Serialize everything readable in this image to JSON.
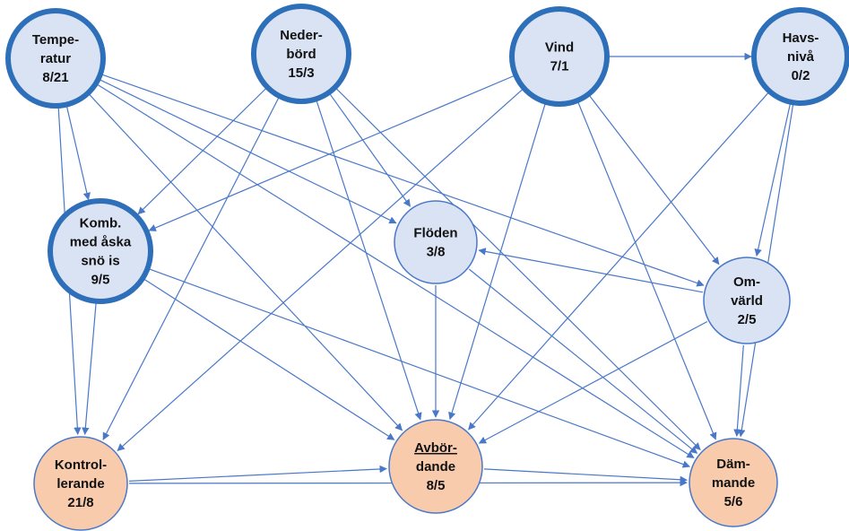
{
  "colors": {
    "edge": "#4a78c8",
    "node_fill_blue": "#dae3f3",
    "node_stroke_blue": "#2e6fba",
    "node_fill_orange": "#f8cbad",
    "node_stroke_blue_thin": "#4a78c8",
    "node_stroke_orange": "#4a78c8",
    "text": "#111111"
  },
  "nodes": [
    {
      "id": "temperatur",
      "lines": [
        "Tempe-",
        "ratur",
        "8/21"
      ],
      "style": "thick",
      "fill": "blue"
    },
    {
      "id": "nederbord",
      "lines": [
        "Neder-",
        "börd",
        "15/3"
      ],
      "style": "thick",
      "fill": "blue"
    },
    {
      "id": "vind",
      "lines": [
        "Vind",
        "7/1"
      ],
      "style": "thick",
      "fill": "blue"
    },
    {
      "id": "havsniva",
      "lines": [
        "Havs-",
        "nivå",
        "0/2"
      ],
      "style": "thick",
      "fill": "blue"
    },
    {
      "id": "komb",
      "lines": [
        "Komb.",
        "med åska",
        "snö is",
        "9/5"
      ],
      "style": "thick",
      "fill": "blue"
    },
    {
      "id": "floden",
      "lines": [
        "Flöden",
        "3/8"
      ],
      "style": "thin",
      "fill": "blue"
    },
    {
      "id": "omvarld",
      "lines": [
        "Om-",
        "värld",
        "2/5"
      ],
      "style": "thin",
      "fill": "blue"
    },
    {
      "id": "kontrollerande",
      "lines": [
        "Kontrol-",
        "lerande",
        "21/8"
      ],
      "style": "thin",
      "fill": "orange"
    },
    {
      "id": "avbordande",
      "lines": [
        "Avbör-",
        "dande",
        "8/5"
      ],
      "style": "thin",
      "fill": "orange",
      "underline_line": 0
    },
    {
      "id": "dammande",
      "lines": [
        "Däm-",
        "mande",
        "5/6"
      ],
      "style": "thin",
      "fill": "orange"
    }
  ],
  "edges": [
    [
      "temperatur",
      "komb"
    ],
    [
      "temperatur",
      "kontrollerande"
    ],
    [
      "temperatur",
      "avbordande"
    ],
    [
      "temperatur",
      "floden"
    ],
    [
      "temperatur",
      "omvarld"
    ],
    [
      "temperatur",
      "dammande"
    ],
    [
      "nederbord",
      "komb"
    ],
    [
      "nederbord",
      "kontrollerande"
    ],
    [
      "nederbord",
      "floden"
    ],
    [
      "nederbord",
      "avbordande"
    ],
    [
      "nederbord",
      "dammande"
    ],
    [
      "vind",
      "havsniva"
    ],
    [
      "vind",
      "komb"
    ],
    [
      "vind",
      "kontrollerande"
    ],
    [
      "vind",
      "avbordande"
    ],
    [
      "vind",
      "omvarld"
    ],
    [
      "vind",
      "dammande"
    ],
    [
      "havsniva",
      "omvarld"
    ],
    [
      "havsniva",
      "avbordande"
    ],
    [
      "havsniva",
      "dammande"
    ],
    [
      "komb",
      "kontrollerande"
    ],
    [
      "komb",
      "avbordande"
    ],
    [
      "komb",
      "dammande"
    ],
    [
      "floden",
      "avbordande"
    ],
    [
      "floden",
      "dammande"
    ],
    [
      "omvarld",
      "floden"
    ],
    [
      "omvarld",
      "avbordande"
    ],
    [
      "omvarld",
      "dammande"
    ],
    [
      "kontrollerande",
      "avbordande"
    ],
    [
      "kontrollerande",
      "dammande"
    ],
    [
      "avbordande",
      "dammande"
    ]
  ]
}
